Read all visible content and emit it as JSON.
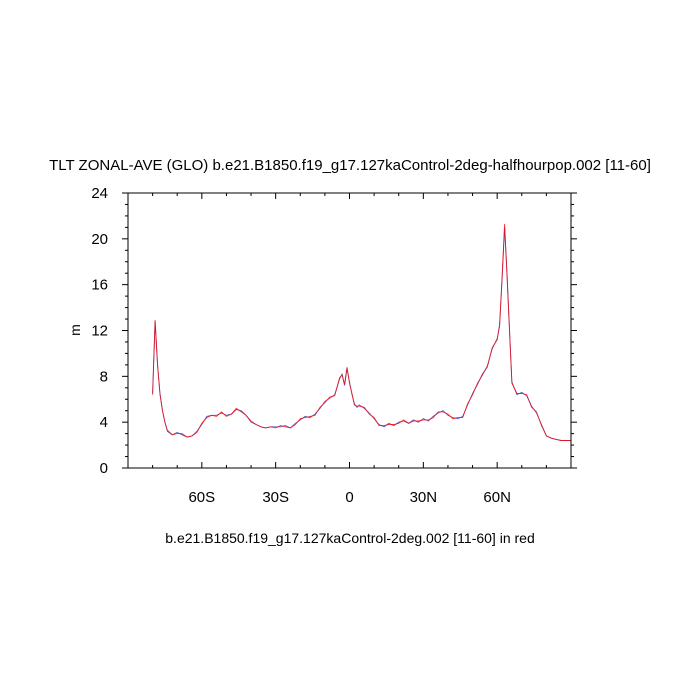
{
  "chart_data": {
    "type": "line",
    "title": "TLT ZONAL-AVE (GLO) b.e21.B1850.f19_g17.127kaControl-2deg-halfhourpop.002 [11-60]",
    "subtitle": "b.e21.B1850.f19_g17.127kaControl-2deg.002 [11-60] in red",
    "ylabel": "m",
    "xlabel": "",
    "xlim": [
      -90,
      90
    ],
    "ylim": [
      0,
      24
    ],
    "xticks": [
      {
        "value": -60,
        "label": "60S"
      },
      {
        "value": -30,
        "label": "30S"
      },
      {
        "value": 0,
        "label": "0"
      },
      {
        "value": 30,
        "label": "30N"
      },
      {
        "value": 60,
        "label": "60N"
      }
    ],
    "yticks": [
      {
        "value": 0,
        "label": "0"
      },
      {
        "value": 4,
        "label": "4"
      },
      {
        "value": 8,
        "label": "8"
      },
      {
        "value": 12,
        "label": "12"
      },
      {
        "value": 16,
        "label": "16"
      },
      {
        "value": 20,
        "label": "20"
      },
      {
        "value": 24,
        "label": "24"
      }
    ],
    "grid": false,
    "series": [
      {
        "color": "#1f3fbf",
        "x": [
          -80,
          -79,
          -78,
          -77,
          -76,
          -75,
          -74,
          -72,
          -70,
          -68,
          -66,
          -64,
          -62,
          -60,
          -58,
          -56,
          -54,
          -52,
          -50,
          -48,
          -46,
          -44,
          -42,
          -40,
          -38,
          -36,
          -34,
          -32,
          -30,
          -28,
          -26,
          -24,
          -22,
          -20,
          -18,
          -16,
          -14,
          -12,
          -10,
          -8,
          -6,
          -4,
          -3,
          -2,
          -1,
          0,
          1,
          2,
          3,
          4,
          6,
          8,
          10,
          12,
          14,
          16,
          18,
          20,
          22,
          24,
          26,
          28,
          30,
          32,
          34,
          36,
          38,
          40,
          42,
          44,
          46,
          48,
          50,
          52,
          54,
          56,
          58,
          60,
          61,
          62,
          63,
          64,
          65,
          66,
          68,
          70,
          72,
          74,
          76,
          78,
          80,
          82,
          84,
          86,
          88,
          90
        ],
        "y": [
          6.5,
          12.8,
          9,
          6.5,
          5,
          4,
          3.2,
          2.9,
          3.1,
          2.9,
          2.7,
          2.8,
          3.2,
          3.8,
          4.5,
          4.6,
          4.6,
          4.8,
          4.6,
          4.7,
          5.1,
          5.0,
          4.6,
          4.0,
          3.8,
          3.6,
          3.5,
          3.6,
          3.6,
          3.6,
          3.7,
          3.5,
          3.9,
          4.2,
          4.5,
          4.4,
          4.7,
          5.2,
          5.8,
          6.1,
          6.4,
          7.8,
          8.2,
          7.2,
          8.7,
          7.5,
          6.4,
          5.6,
          5.3,
          5.5,
          5.2,
          4.8,
          4.3,
          3.8,
          3.6,
          3.9,
          3.7,
          4.0,
          4.1,
          3.9,
          4.2,
          4.0,
          4.3,
          4.1,
          4.5,
          4.8,
          5.0,
          4.6,
          4.4,
          4.3,
          4.5,
          5.5,
          6.5,
          7.3,
          8.2,
          8.8,
          10.5,
          11.2,
          12.5,
          16.5,
          21.0,
          17,
          12.0,
          7.5,
          6.4,
          6.6,
          6.3,
          5.4,
          4.8,
          3.8,
          2.8,
          2.6,
          2.5,
          2.4,
          2.4,
          2.4
        ]
      },
      {
        "color": "#ff0000",
        "x": [
          -80,
          -79,
          -78,
          -77,
          -76,
          -75,
          -74,
          -72,
          -70,
          -68,
          -66,
          -64,
          -62,
          -60,
          -58,
          -56,
          -54,
          -52,
          -50,
          -48,
          -46,
          -44,
          -42,
          -40,
          -38,
          -36,
          -34,
          -32,
          -30,
          -28,
          -26,
          -24,
          -22,
          -20,
          -18,
          -16,
          -14,
          -12,
          -10,
          -8,
          -6,
          -4,
          -3,
          -2,
          -1,
          0,
          1,
          2,
          3,
          4,
          6,
          8,
          10,
          12,
          14,
          16,
          18,
          20,
          22,
          24,
          26,
          28,
          30,
          32,
          34,
          36,
          38,
          40,
          42,
          44,
          46,
          48,
          50,
          52,
          54,
          56,
          58,
          60,
          61,
          62,
          63,
          64,
          65,
          66,
          68,
          70,
          72,
          74,
          76,
          78,
          80,
          82,
          84,
          86,
          88,
          90
        ],
        "y": [
          6.4,
          12.9,
          9.1,
          6.4,
          5.0,
          4.0,
          3.3,
          2.9,
          3.0,
          3.0,
          2.7,
          2.8,
          3.1,
          3.9,
          4.4,
          4.6,
          4.5,
          4.9,
          4.5,
          4.7,
          5.2,
          4.9,
          4.6,
          4.1,
          3.8,
          3.6,
          3.5,
          3.6,
          3.5,
          3.7,
          3.6,
          3.5,
          3.8,
          4.3,
          4.4,
          4.5,
          4.6,
          5.3,
          5.7,
          6.2,
          6.3,
          7.9,
          8.1,
          7.3,
          8.8,
          7.4,
          6.5,
          5.5,
          5.4,
          5.4,
          5.3,
          4.7,
          4.4,
          3.7,
          3.7,
          3.8,
          3.8,
          3.9,
          4.2,
          3.9,
          4.1,
          4.1,
          4.2,
          4.2,
          4.4,
          4.9,
          4.9,
          4.7,
          4.3,
          4.4,
          4.4,
          5.6,
          6.4,
          7.4,
          8.1,
          8.9,
          10.4,
          11.3,
          12.4,
          16.7,
          21.3,
          16.8,
          12.1,
          7.4,
          6.5,
          6.5,
          6.4,
          5.3,
          4.9,
          3.7,
          2.8,
          2.6,
          2.5,
          2.4,
          2.4,
          2.4
        ]
      }
    ]
  }
}
